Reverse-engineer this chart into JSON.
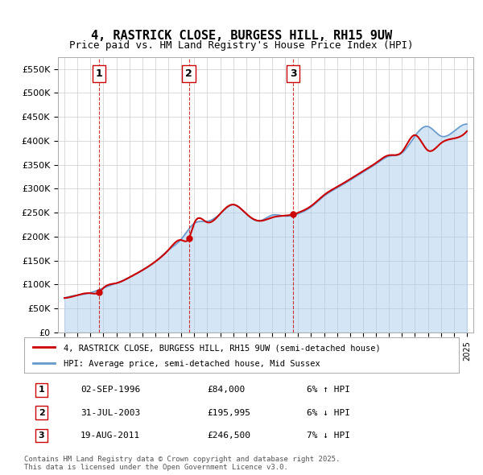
{
  "title": "4, RASTRICK CLOSE, BURGESS HILL, RH15 9UW",
  "subtitle": "Price paid vs. HM Land Registry's House Price Index (HPI)",
  "ylabel": "",
  "ylim": [
    0,
    575000
  ],
  "yticks": [
    0,
    50000,
    100000,
    150000,
    200000,
    250000,
    300000,
    350000,
    400000,
    450000,
    500000,
    550000
  ],
  "ytick_labels": [
    "£0",
    "£50K",
    "£100K",
    "£150K",
    "£200K",
    "£250K",
    "£300K",
    "£350K",
    "£400K",
    "£450K",
    "£500K",
    "£550K"
  ],
  "xlim_start": 1993.5,
  "xlim_end": 2025.5,
  "sale_dates": [
    1996.67,
    2003.58,
    2011.63
  ],
  "sale_prices": [
    84000,
    195995,
    246500
  ],
  "sale_labels": [
    "1",
    "2",
    "3"
  ],
  "sale_info": [
    {
      "label": "1",
      "date": "02-SEP-1996",
      "price": "£84,000",
      "hpi": "6% ↑ HPI"
    },
    {
      "label": "2",
      "date": "31-JUL-2003",
      "price": "£195,995",
      "hpi": "6% ↓ HPI"
    },
    {
      "label": "3",
      "date": "19-AUG-2011",
      "price": "£246,500",
      "hpi": "7% ↓ HPI"
    }
  ],
  "legend_line1": "4, RASTRICK CLOSE, BURGESS HILL, RH15 9UW (semi-detached house)",
  "legend_line2": "HPI: Average price, semi-detached house, Mid Sussex",
  "footer": "Contains HM Land Registry data © Crown copyright and database right 2025.\nThis data is licensed under the Open Government Licence v3.0.",
  "line_color_red": "#cc0000",
  "line_color_blue": "#6699cc",
  "line_color_blue_fill": "#aaccee",
  "background_color": "#ffffff",
  "grid_color": "#cccccc",
  "dashed_color": "#cc0000",
  "hpi_years": [
    1994,
    1995,
    1996,
    1997,
    1998,
    1999,
    2000,
    2001,
    2002,
    2003,
    2004,
    2005,
    2006,
    2007,
    2008,
    2009,
    2010,
    2011,
    2012,
    2013,
    2014,
    2015,
    2016,
    2017,
    2018,
    2019,
    2020,
    2021,
    2022,
    2023,
    2024,
    2025
  ],
  "hpi_values": [
    72000,
    78000,
    83000,
    93000,
    103000,
    115000,
    130000,
    148000,
    172000,
    195000,
    228000,
    232000,
    248000,
    267000,
    248000,
    233000,
    245000,
    243000,
    248000,
    262000,
    285000,
    302000,
    318000,
    335000,
    352000,
    368000,
    375000,
    410000,
    430000,
    410000,
    420000,
    435000
  ],
  "paid_years": [
    1994,
    1995,
    1996,
    1996.67,
    1997,
    1998,
    1999,
    2000,
    2001,
    2002,
    2003,
    2003.58,
    2004,
    2005,
    2006,
    2007,
    2008,
    2009,
    2010,
    2011,
    2011.63,
    2012,
    2013,
    2014,
    2015,
    2016,
    2017,
    2018,
    2019,
    2020,
    2021,
    2022,
    2023,
    2024,
    2025
  ],
  "paid_values": [
    72000,
    78000,
    82000,
    84000,
    93000,
    103000,
    115000,
    130000,
    148000,
    172000,
    193000,
    195995,
    228000,
    230000,
    248000,
    267000,
    248000,
    233000,
    240000,
    244000,
    246500,
    250000,
    264000,
    287000,
    304000,
    320000,
    337000,
    354000,
    370000,
    377000,
    412000,
    380000,
    395000,
    405000,
    420000
  ]
}
